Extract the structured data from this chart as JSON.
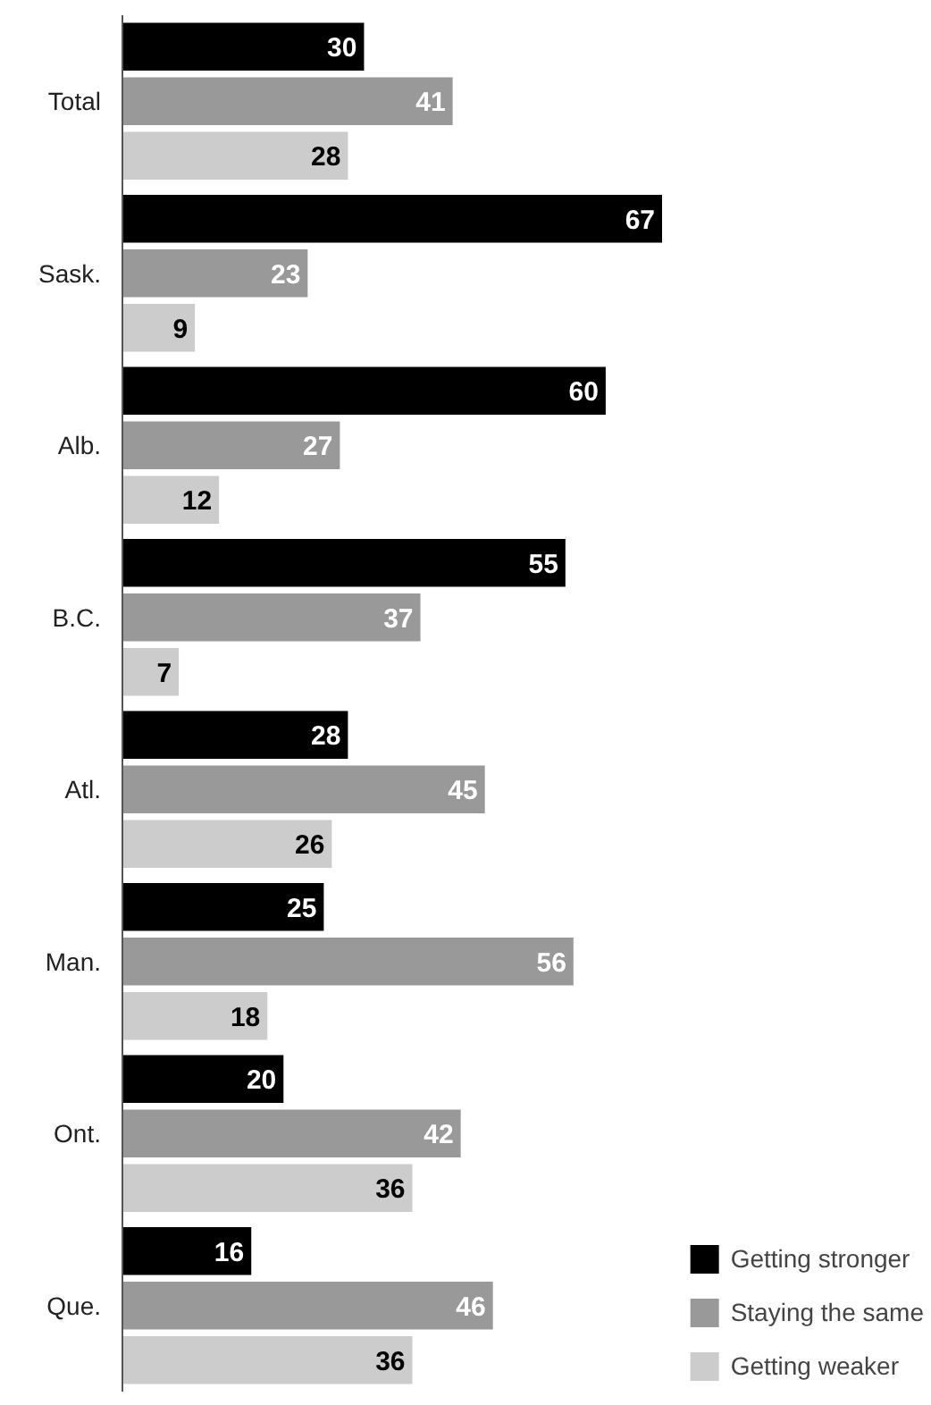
{
  "chart_data": {
    "type": "bar",
    "orientation": "horizontal",
    "data_labels": true,
    "grid": false,
    "legend": "bottom right",
    "categories": [
      "Total",
      "Sask.",
      "Alb.",
      "B.C.",
      "Atl.",
      "Man.",
      "Ont.",
      "Que."
    ],
    "series": [
      {
        "name": "Getting stronger",
        "color": "#000000",
        "values": [
          30,
          67,
          60,
          55,
          28,
          25,
          20,
          16
        ]
      },
      {
        "name": "Staying the same",
        "color": "#999999",
        "values": [
          41,
          23,
          27,
          37,
          45,
          56,
          42,
          46
        ]
      },
      {
        "name": "Getting weaker",
        "color": "#cccccc",
        "values": [
          28,
          9,
          12,
          7,
          26,
          18,
          36,
          36
        ]
      }
    ]
  }
}
